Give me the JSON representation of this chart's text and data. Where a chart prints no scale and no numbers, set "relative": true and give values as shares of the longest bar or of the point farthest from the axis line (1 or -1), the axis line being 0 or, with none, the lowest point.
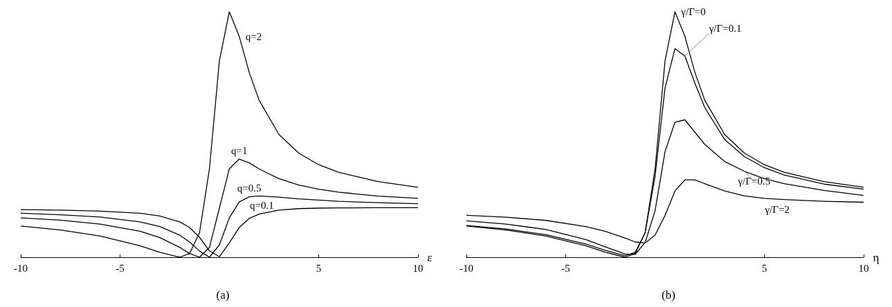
{
  "chart_data": [
    {
      "type": "line",
      "title": "(a)",
      "xlabel": "ε",
      "relative": true,
      "xlim": [
        -10,
        10
      ],
      "xticks": [
        -10,
        -5,
        5,
        10
      ],
      "grid": false,
      "legend": false,
      "marker": "none",
      "line_style": "solid",
      "x": [
        -10,
        -8,
        -6,
        -4,
        -3,
        -2,
        -1.5,
        -1,
        -0.5,
        0,
        0.5,
        1,
        1.5,
        2,
        3,
        4,
        5,
        6,
        8,
        10
      ],
      "series": [
        {
          "name": "q=2",
          "color": "#000000",
          "values": [
            0.127,
            0.111,
            0.086,
            0.047,
            0.02,
            0,
            0.015,
            0.1,
            0.36,
            0.8,
            1,
            0.9,
            0.754,
            0.64,
            0.5,
            0.424,
            0.377,
            0.346,
            0.308,
            0.285
          ]
        },
        {
          "name": "q=1",
          "color": "#000000",
          "values": [
            0.16,
            0.151,
            0.135,
            0.106,
            0.08,
            0.04,
            0.015,
            0,
            0.04,
            0.2,
            0.36,
            0.4,
            0.385,
            0.36,
            0.32,
            0.294,
            0.277,
            0.265,
            0.249,
            0.24
          ]
        },
        {
          "name": "q=0.5",
          "color": "#000000",
          "values": [
            0.179,
            0.173,
            0.164,
            0.144,
            0.125,
            0.09,
            0.062,
            0.025,
            0,
            0.05,
            0.16,
            0.225,
            0.246,
            0.25,
            0.245,
            0.238,
            0.233,
            0.228,
            0.222,
            0.218
          ]
        },
        {
          "name": "q=0.1",
          "color": "#000000",
          "values": [
            0.194,
            0.192,
            0.188,
            0.179,
            0.168,
            0.144,
            0.121,
            0.081,
            0.026,
            0.002,
            0.058,
            0.121,
            0.158,
            0.176,
            0.192,
            0.198,
            0.2,
            0.201,
            0.202,
            0.202
          ]
        }
      ]
    },
    {
      "type": "line",
      "title": "(b)",
      "xlabel": "η",
      "relative": true,
      "xlim": [
        -10,
        10
      ],
      "xticks": [
        -10,
        -5,
        5,
        10
      ],
      "grid": false,
      "legend": false,
      "marker": "none",
      "line_style": "solid",
      "x": [
        -10,
        -8,
        -6,
        -4,
        -3,
        -2,
        -1.5,
        -1,
        -0.5,
        0,
        0.5,
        1,
        1.5,
        2,
        3,
        4,
        5,
        6,
        8,
        10
      ],
      "series": [
        {
          "name": "γ/Γ=0",
          "color": "#000000",
          "values": [
            0.127,
            0.111,
            0.086,
            0.047,
            0.02,
            0,
            0.015,
            0.1,
            0.36,
            0.8,
            1,
            0.9,
            0.754,
            0.64,
            0.5,
            0.424,
            0.377,
            0.346,
            0.308,
            0.285
          ]
        },
        {
          "name": "γ/Γ=0.1",
          "color": "#000000",
          "values": [
            0.129,
            0.115,
            0.092,
            0.054,
            0.028,
            0.006,
            0.02,
            0.1,
            0.33,
            0.69,
            0.85,
            0.82,
            0.71,
            0.61,
            0.48,
            0.41,
            0.365,
            0.335,
            0.298,
            0.277
          ]
        },
        {
          "name": "γ/Γ=0.5",
          "color": "#000000",
          "values": [
            0.148,
            0.135,
            0.113,
            0.072,
            0.042,
            0.013,
            0.012,
            0.06,
            0.19,
            0.43,
            0.55,
            0.56,
            0.51,
            0.46,
            0.39,
            0.35,
            0.32,
            0.3,
            0.272,
            0.252
          ]
        },
        {
          "name": "γ/Γ=2",
          "color": "#000000",
          "values": [
            0.171,
            0.163,
            0.15,
            0.125,
            0.105,
            0.078,
            0.062,
            0.058,
            0.09,
            0.17,
            0.27,
            0.315,
            0.315,
            0.3,
            0.27,
            0.25,
            0.24,
            0.235,
            0.228,
            0.224
          ]
        }
      ]
    }
  ]
}
